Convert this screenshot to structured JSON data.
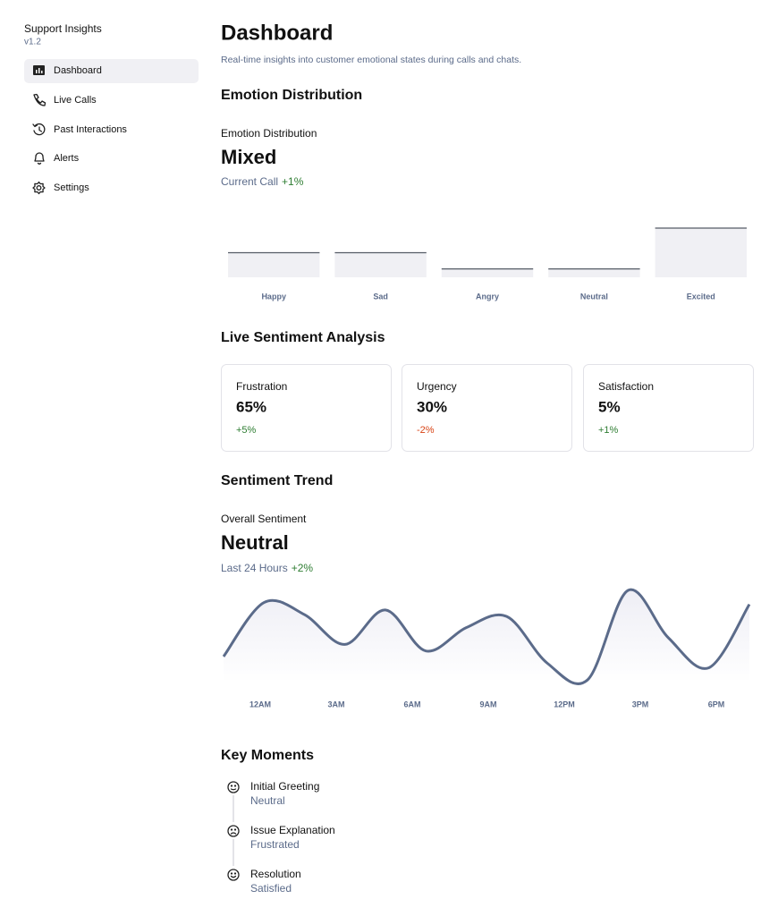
{
  "sidebar": {
    "title": "Support Insights",
    "version": "v1.2",
    "nav": [
      {
        "label": "Dashboard",
        "active": true
      },
      {
        "label": "Live Calls",
        "active": false
      },
      {
        "label": "Past Interactions",
        "active": false
      },
      {
        "label": "Alerts",
        "active": false
      },
      {
        "label": "Settings",
        "active": false
      }
    ]
  },
  "header": {
    "title": "Dashboard",
    "subtitle": "Real-time insights into customer emotional states during calls and chats."
  },
  "emotion": {
    "heading": "Emotion Distribution",
    "label": "Emotion Distribution",
    "value": "Mixed",
    "period": "Current Call",
    "change": "+1%",
    "chart_data": {
      "type": "bar",
      "categories": [
        "Happy",
        "Sad",
        "Angry",
        "Neutral",
        "Excited"
      ],
      "values": [
        50,
        50,
        17,
        17,
        100
      ]
    }
  },
  "sentiment": {
    "heading": "Live Sentiment Analysis",
    "cards": [
      {
        "title": "Frustration",
        "value": "65%",
        "change": "+5%"
      },
      {
        "title": "Urgency",
        "value": "30%",
        "change": "-2%"
      },
      {
        "title": "Satisfaction",
        "value": "5%",
        "change": "+1%"
      }
    ]
  },
  "trend": {
    "heading": "Sentiment Trend",
    "label": "Overall Sentiment",
    "value": "Neutral",
    "period": "Last 24 Hours",
    "change": "+2%",
    "chart_data": {
      "type": "line",
      "values": [
        27,
        85,
        72,
        40,
        77,
        33,
        58,
        70,
        20,
        2,
        98,
        47,
        15,
        83
      ],
      "color": "#5b6b8a",
      "xlabels": [
        "12AM",
        "3AM",
        "6AM",
        "9AM",
        "12PM",
        "3PM",
        "6PM"
      ]
    }
  },
  "moments": {
    "heading": "Key Moments",
    "items": [
      {
        "title": "Initial Greeting",
        "status": "Neutral"
      },
      {
        "title": "Issue Explanation",
        "status": "Frustrated"
      },
      {
        "title": "Resolution",
        "status": "Satisfied"
      }
    ]
  }
}
